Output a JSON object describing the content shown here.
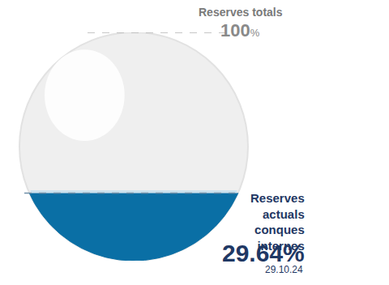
{
  "chart_data": {
    "type": "fill_level",
    "categories": [
      "Reserves totals",
      "Reserves actuals conques internes"
    ],
    "values": [
      100,
      29.64
    ],
    "value_labels": [
      "100%",
      "29.64%"
    ],
    "date": "29.10.24",
    "color": "#0a6fa5",
    "ylim": [
      0,
      100
    ],
    "yticks": [
      {
        "value": 100,
        "label": "100%"
      }
    ],
    "tick_labels": false,
    "grid": false
  }
}
